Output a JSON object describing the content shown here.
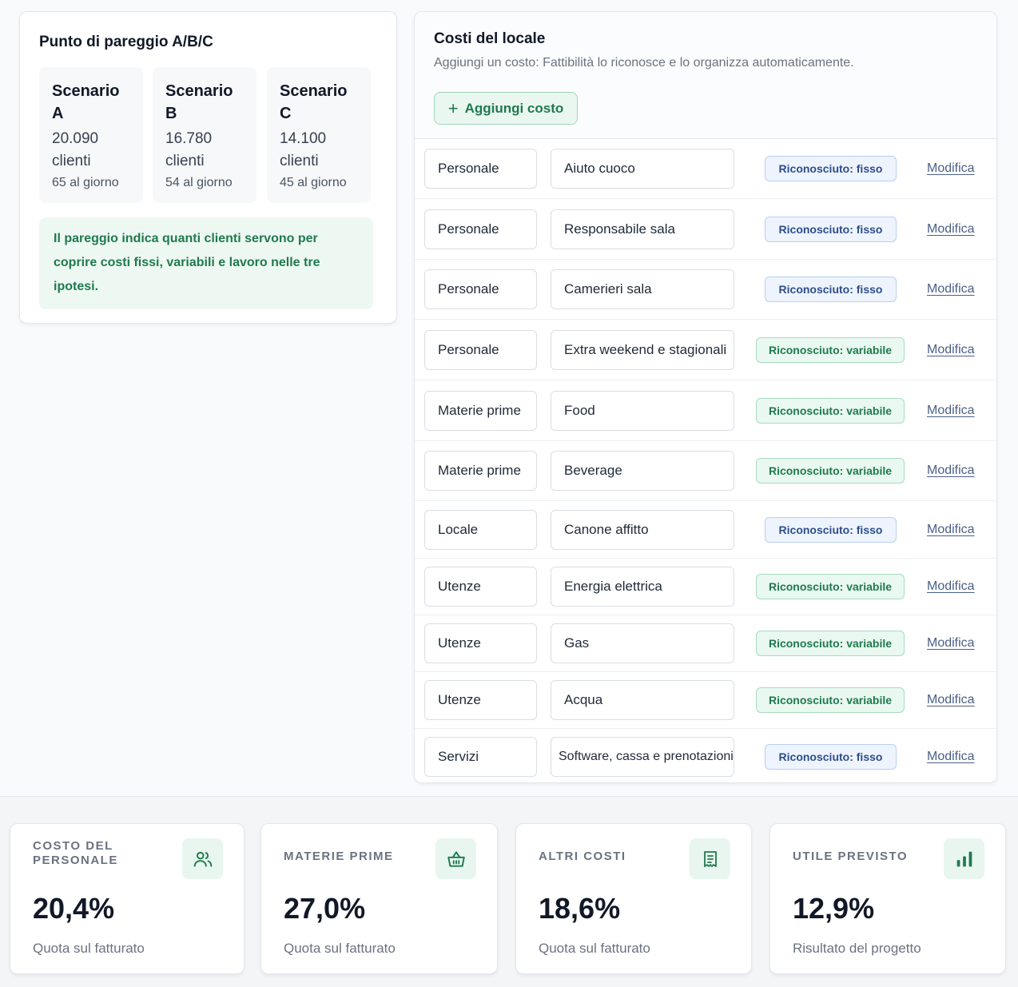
{
  "pareggio": {
    "title": "Punto di pareggio A/B/C",
    "scenarios": [
      {
        "name": "Scenario A",
        "value": "20.090 clienti",
        "per_day": "65 al giorno"
      },
      {
        "name": "Scenario B",
        "value": "16.780 clienti",
        "per_day": "54 al giorno"
      },
      {
        "name": "Scenario C",
        "value": "14.100 clienti",
        "per_day": "45 al giorno"
      }
    ],
    "note": "Il pareggio indica quanti clienti servono per coprire costi fissi, variabili e lavoro nelle tre ipotesi."
  },
  "costi": {
    "title": "Costi del locale",
    "subtitle": "Aggiungi un costo: Fattibilità lo riconosce e lo organizza automaticamente.",
    "add_button": "Aggiungi costo",
    "edit_label": "Modifica",
    "rows": [
      {
        "category": "Personale",
        "name": "Aiuto cuoco",
        "badge": "Riconosciuto: fisso",
        "type": "fisso"
      },
      {
        "category": "Personale",
        "name": "Responsabile sala",
        "badge": "Riconosciuto: fisso",
        "type": "fisso"
      },
      {
        "category": "Personale",
        "name": "Camerieri sala",
        "badge": "Riconosciuto: fisso",
        "type": "fisso"
      },
      {
        "category": "Personale",
        "name": "Extra weekend e stagionali",
        "badge": "Riconosciuto: variabile",
        "type": "variabile"
      },
      {
        "category": "Materie prime",
        "name": "Food",
        "badge": "Riconosciuto: variabile",
        "type": "variabile"
      },
      {
        "category": "Materie prime",
        "name": "Beverage",
        "badge": "Riconosciuto: variabile",
        "type": "variabile"
      },
      {
        "category": "Locale",
        "name": "Canone affitto",
        "badge": "Riconosciuto: fisso",
        "type": "fisso"
      },
      {
        "category": "Utenze",
        "name": "Energia elettrica",
        "badge": "Riconosciuto: variabile",
        "type": "variabile"
      },
      {
        "category": "Utenze",
        "name": "Gas",
        "badge": "Riconosciuto: variabile",
        "type": "variabile"
      },
      {
        "category": "Utenze",
        "name": "Acqua",
        "badge": "Riconosciuto: variabile",
        "type": "variabile"
      },
      {
        "category": "Servizi",
        "name": "Software, cassa e prenotazioni",
        "badge": "Riconosciuto: fisso",
        "type": "fisso"
      }
    ]
  },
  "kpis": [
    {
      "label": "Costo del personale",
      "value": "20,4%",
      "caption": "Quota sul fatturato",
      "icon": "users-icon"
    },
    {
      "label": "Materie prime",
      "value": "27,0%",
      "caption": "Quota sul fatturato",
      "icon": "basket-icon"
    },
    {
      "label": "Altri costi",
      "value": "18,6%",
      "caption": "Quota sul fatturato",
      "icon": "receipt-icon"
    },
    {
      "label": "Utile previsto",
      "value": "12,9%",
      "caption": "Risultato del progetto",
      "icon": "bar-chart-icon"
    }
  ],
  "colors": {
    "accent_green": "#1f7a4d",
    "badge_fisso": "#2e4d8c",
    "badge_variabile": "#1f7a4d",
    "link": "#4a5f86"
  }
}
